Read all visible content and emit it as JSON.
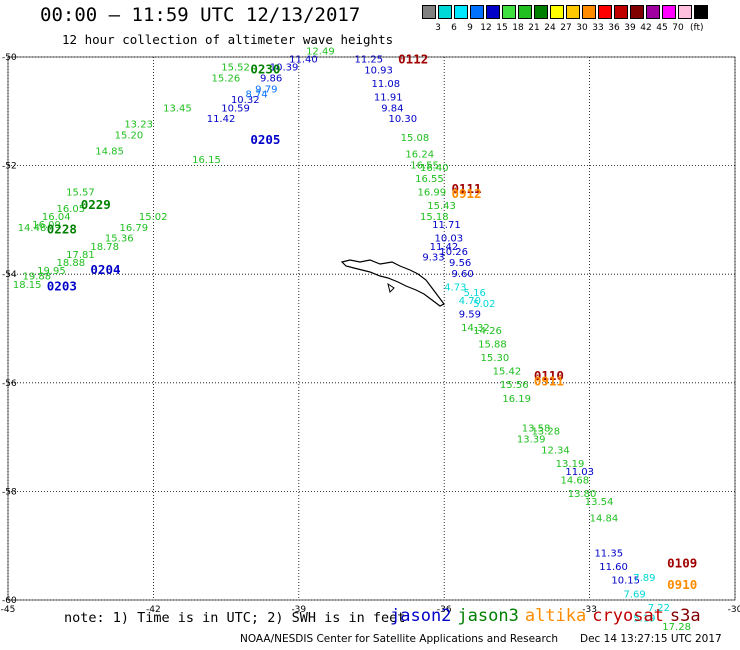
{
  "header": {
    "title": "00:00 – 11:59 UTC 12/13/2017",
    "subtitle": "12 hour collection of altimeter wave heights"
  },
  "color_scale": {
    "unit": "(ft)",
    "bins": [
      {
        "label": "",
        "color": "#808080"
      },
      {
        "label": "3",
        "color": "#00d8d8"
      },
      {
        "label": "6",
        "color": "#00e8ff"
      },
      {
        "label": "9",
        "color": "#0070ff"
      },
      {
        "label": "12",
        "color": "#0000c8"
      },
      {
        "label": "15",
        "color": "#40e040"
      },
      {
        "label": "18",
        "color": "#20c020"
      },
      {
        "label": "21",
        "color": "#008000"
      },
      {
        "label": "24",
        "color": "#ffff00"
      },
      {
        "label": "27",
        "color": "#ffc800"
      },
      {
        "label": "30",
        "color": "#ff8c00"
      },
      {
        "label": "33",
        "color": "#ff0000"
      },
      {
        "label": "36",
        "color": "#c00000"
      },
      {
        "label": "39",
        "color": "#800000"
      },
      {
        "label": "42",
        "color": "#a000a0"
      },
      {
        "label": "45",
        "color": "#ff00ff"
      },
      {
        "label": "70",
        "color": "#ffc0e0"
      },
      {
        "label": "",
        "color": "#000000"
      }
    ]
  },
  "map": {
    "lon_ticks": [
      -45,
      -42,
      -39,
      -36,
      -33,
      -30
    ],
    "lat_ticks": [
      -50,
      -52,
      -54,
      -56,
      -58,
      -60
    ],
    "track_labels": [
      {
        "text": "0230",
        "lon": -40.0,
        "lat": -50.3,
        "color": "#008000"
      },
      {
        "text": "0229",
        "lon": -43.5,
        "lat": -52.8,
        "color": "#008000"
      },
      {
        "text": "0228",
        "lon": -44.2,
        "lat": -53.25,
        "color": "#008000"
      },
      {
        "text": "0205",
        "lon": -40.0,
        "lat": -51.6,
        "color": "#0000c8"
      },
      {
        "text": "0204",
        "lon": -43.3,
        "lat": -54.0,
        "color": "#0000c8"
      },
      {
        "text": "0203",
        "lon": -44.2,
        "lat": -54.3,
        "color": "#0000c8"
      },
      {
        "text": "0112",
        "lon": -36.95,
        "lat": -50.12,
        "color": "#a00000"
      },
      {
        "text": "0111",
        "lon": -35.85,
        "lat": -52.5,
        "color": "#a00000"
      },
      {
        "text": "0912",
        "lon": -35.85,
        "lat": -52.6,
        "color": "#ff8c00"
      },
      {
        "text": "0110",
        "lon": -34.15,
        "lat": -55.95,
        "color": "#a00000"
      },
      {
        "text": "0911",
        "lon": -34.15,
        "lat": -56.05,
        "color": "#ff8c00"
      },
      {
        "text": "0109",
        "lon": -31.4,
        "lat": -59.4,
        "color": "#a00000"
      },
      {
        "text": "0910",
        "lon": -31.4,
        "lat": -59.8,
        "color": "#ff8c00"
      }
    ],
    "swh_tracks": [
      {
        "color": "#20c020",
        "points": [
          {
            "text": "12.49",
            "lon": -38.85,
            "lat": -49.95
          },
          {
            "text": "15.52",
            "lon": -40.6,
            "lat": -50.25
          },
          {
            "text": "15.26",
            "lon": -40.8,
            "lat": -50.45
          },
          {
            "text": "13.45",
            "lon": -41.8,
            "lat": -51.0
          },
          {
            "text": "13.23",
            "lon": -42.6,
            "lat": -51.3
          },
          {
            "text": "15.20",
            "lon": -42.8,
            "lat": -51.5
          },
          {
            "text": "14.85",
            "lon": -43.2,
            "lat": -51.8
          },
          {
            "text": "15.57",
            "lon": -43.8,
            "lat": -52.55
          },
          {
            "text": "16.05",
            "lon": -44.0,
            "lat": -52.85
          },
          {
            "text": "16.04",
            "lon": -44.3,
            "lat": -53.0
          },
          {
            "text": "16.09",
            "lon": -44.5,
            "lat": -53.15
          },
          {
            "text": "14.48",
            "lon": -44.8,
            "lat": -53.2
          }
        ]
      },
      {
        "color": "#20c020",
        "points": [
          {
            "text": "16.15",
            "lon": -41.2,
            "lat": -51.95
          },
          {
            "text": "15.02",
            "lon": -42.3,
            "lat": -53.0
          },
          {
            "text": "16.79",
            "lon": -42.7,
            "lat": -53.2
          },
          {
            "text": "15.36",
            "lon": -43.0,
            "lat": -53.4
          },
          {
            "text": "18.78",
            "lon": -43.3,
            "lat": -53.55
          },
          {
            "text": "17.81",
            "lon": -43.8,
            "lat": -53.7
          },
          {
            "text": "18.88",
            "lon": -44.0,
            "lat": -53.85
          },
          {
            "text": "19.95",
            "lon": -44.4,
            "lat": -54.0
          },
          {
            "text": "19.88",
            "lon": -44.7,
            "lat": -54.1
          },
          {
            "text": "18.15",
            "lon": -44.9,
            "lat": -54.25
          }
        ]
      },
      {
        "color": "#0000c8",
        "points": [
          {
            "text": "11.40",
            "lon": -39.2,
            "lat": -50.1
          },
          {
            "text": "10.39",
            "lon": -39.6,
            "lat": -50.25
          },
          {
            "text": "9.86",
            "lon": -39.8,
            "lat": -50.45
          },
          {
            "text": "10.32",
            "lon": -40.4,
            "lat": -50.85
          },
          {
            "text": "10.59",
            "lon": -40.6,
            "lat": -51.0
          },
          {
            "text": "11.42",
            "lon": -40.9,
            "lat": -51.2
          }
        ]
      },
      {
        "color": "#0070ff",
        "points": [
          {
            "text": "9.79",
            "lon": -39.9,
            "lat": -50.65
          },
          {
            "text": "8.74",
            "lon": -40.1,
            "lat": -50.75
          }
        ]
      },
      {
        "color": "#0000c8",
        "points": [
          {
            "text": "11.25",
            "lon": -37.85,
            "lat": -50.1
          },
          {
            "text": "10.93",
            "lon": -37.65,
            "lat": -50.3
          },
          {
            "text": "11.08",
            "lon": -37.5,
            "lat": -50.55
          },
          {
            "text": "11.91",
            "lon": -37.45,
            "lat": -50.8
          },
          {
            "text": "9.84",
            "lon": -37.3,
            "lat": -51.0
          },
          {
            "text": "10.30",
            "lon": -37.15,
            "lat": -51.2
          },
          {
            "text": "11.71",
            "lon": -36.25,
            "lat": -53.15
          },
          {
            "text": "10.03",
            "lon": -36.2,
            "lat": -53.4
          },
          {
            "text": "11.42",
            "lon": -36.3,
            "lat": -53.55
          },
          {
            "text": "10.26",
            "lon": -36.1,
            "lat": -53.65
          },
          {
            "text": "9.33",
            "lon": -36.45,
            "lat": -53.75
          },
          {
            "text": "9.56",
            "lon": -35.9,
            "lat": -53.85
          },
          {
            "text": "9.60",
            "lon": -35.85,
            "lat": -54.05
          },
          {
            "text": "9.59",
            "lon": -35.7,
            "lat": -54.8
          },
          {
            "text": "11.03",
            "lon": -33.5,
            "lat": -57.7
          },
          {
            "text": "11.35",
            "lon": -32.9,
            "lat": -59.2
          },
          {
            "text": "11.60",
            "lon": -32.8,
            "lat": -59.45
          },
          {
            "text": "10.15",
            "lon": -32.55,
            "lat": -59.7
          }
        ]
      },
      {
        "color": "#00d8d8",
        "points": [
          {
            "text": "4.73",
            "lon": -36.0,
            "lat": -54.3
          },
          {
            "text": "5.16",
            "lon": -35.6,
            "lat": -54.4
          },
          {
            "text": "4.70",
            "lon": -35.7,
            "lat": -54.55
          },
          {
            "text": "5.02",
            "lon": -35.4,
            "lat": -54.6
          },
          {
            "text": "7.89",
            "lon": -32.1,
            "lat": -59.65
          },
          {
            "text": "7.69",
            "lon": -32.3,
            "lat": -59.95
          },
          {
            "text": "7.22",
            "lon": -31.8,
            "lat": -60.2
          },
          {
            "text": "5.19",
            "lon": -32.1,
            "lat": -60.4
          }
        ]
      },
      {
        "color": "#20c020",
        "points": [
          {
            "text": "15.08",
            "lon": -36.9,
            "lat": -51.55
          },
          {
            "text": "16.24",
            "lon": -36.8,
            "lat": -51.85
          },
          {
            "text": "16.55",
            "lon": -36.7,
            "lat": -52.05
          },
          {
            "text": "16.40",
            "lon": -36.5,
            "lat": -52.1
          },
          {
            "text": "16.55",
            "lon": -36.6,
            "lat": -52.3
          },
          {
            "text": "16.99",
            "lon": -36.55,
            "lat": -52.55
          },
          {
            "text": "15.43",
            "lon": -36.35,
            "lat": -52.8
          },
          {
            "text": "15.18",
            "lon": -36.5,
            "lat": -53.0
          },
          {
            "text": "14.32",
            "lon": -35.65,
            "lat": -55.05
          },
          {
            "text": "14.26",
            "lon": -35.4,
            "lat": -55.1
          },
          {
            "text": "15.88",
            "lon": -35.3,
            "lat": -55.35
          },
          {
            "text": "15.30",
            "lon": -35.25,
            "lat": -55.6
          },
          {
            "text": "15.42",
            "lon": -35.0,
            "lat": -55.85
          },
          {
            "text": "15.56",
            "lon": -34.85,
            "lat": -56.1
          },
          {
            "text": "16.19",
            "lon": -34.8,
            "lat": -56.35
          },
          {
            "text": "13.58",
            "lon": -34.4,
            "lat": -56.9
          },
          {
            "text": "13.28",
            "lon": -34.2,
            "lat": -56.95
          },
          {
            "text": "13.39",
            "lon": -34.5,
            "lat": -57.1
          },
          {
            "text": "12.34",
            "lon": -34.0,
            "lat": -57.3
          },
          {
            "text": "13.19",
            "lon": -33.7,
            "lat": -57.55
          },
          {
            "text": "14.68",
            "lon": -33.6,
            "lat": -57.85
          },
          {
            "text": "13.80",
            "lon": -33.45,
            "lat": -58.1
          },
          {
            "text": "13.54",
            "lon": -33.1,
            "lat": -58.25
          },
          {
            "text": "14.84",
            "lon": -33.0,
            "lat": -58.55
          },
          {
            "text": "17.28",
            "lon": -31.5,
            "lat": -60.55
          }
        ]
      }
    ],
    "coastline_label": ""
  },
  "footer": {
    "note": "note: 1) Time is in UTC; 2) SWH is in feet",
    "legend": [
      {
        "name": "jason2",
        "color": "#0000c8"
      },
      {
        "name": "jason3",
        "color": "#008000"
      },
      {
        "name": "altika",
        "color": "#ff8c00"
      },
      {
        "name": "cryosat",
        "color": "#c00000"
      },
      {
        "name": "s3a",
        "color": "#800000"
      }
    ],
    "credit": "NOAA/NESDIS Center for Satellite Applications and Research",
    "timestamp": "Dec 14 13:27:15 UTC 2017"
  }
}
